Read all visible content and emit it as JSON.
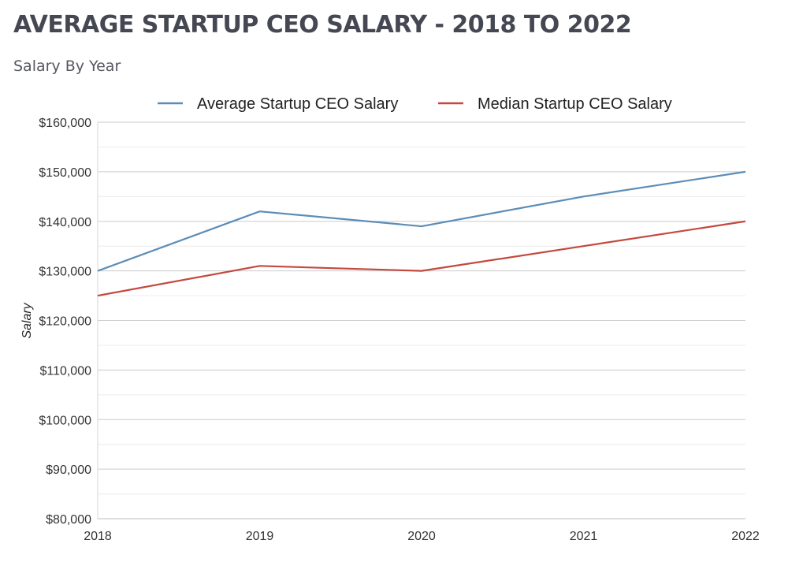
{
  "header": {
    "title": "AVERAGE STARTUP CEO SALARY - 2018 TO 2022",
    "subtitle": "Salary By Year"
  },
  "chart_data": {
    "type": "line",
    "title": "AVERAGE STARTUP CEO SALARY - 2018 TO 2022",
    "subtitle": "Salary By Year",
    "xlabel": "",
    "ylabel": "Salary",
    "x": [
      "2018",
      "2019",
      "2020",
      "2021",
      "2022"
    ],
    "ylim": [
      80000,
      160000
    ],
    "yticks": [
      80000,
      90000,
      100000,
      110000,
      120000,
      130000,
      140000,
      150000,
      160000
    ],
    "ytick_labels": [
      "$80,000",
      "$90,000",
      "$100,000",
      "$110,000",
      "$120,000",
      "$130,000",
      "$140,000",
      "$150,000",
      "$160,000"
    ],
    "grid": true,
    "legend_position": "top",
    "series": [
      {
        "name": "Average Startup CEO Salary",
        "color": "#5b8db8",
        "values": [
          130000,
          142000,
          139000,
          145000,
          150000
        ]
      },
      {
        "name": "Median Startup CEO Salary",
        "color": "#c4483e",
        "values": [
          125000,
          131000,
          130000,
          135000,
          140000
        ]
      }
    ]
  }
}
